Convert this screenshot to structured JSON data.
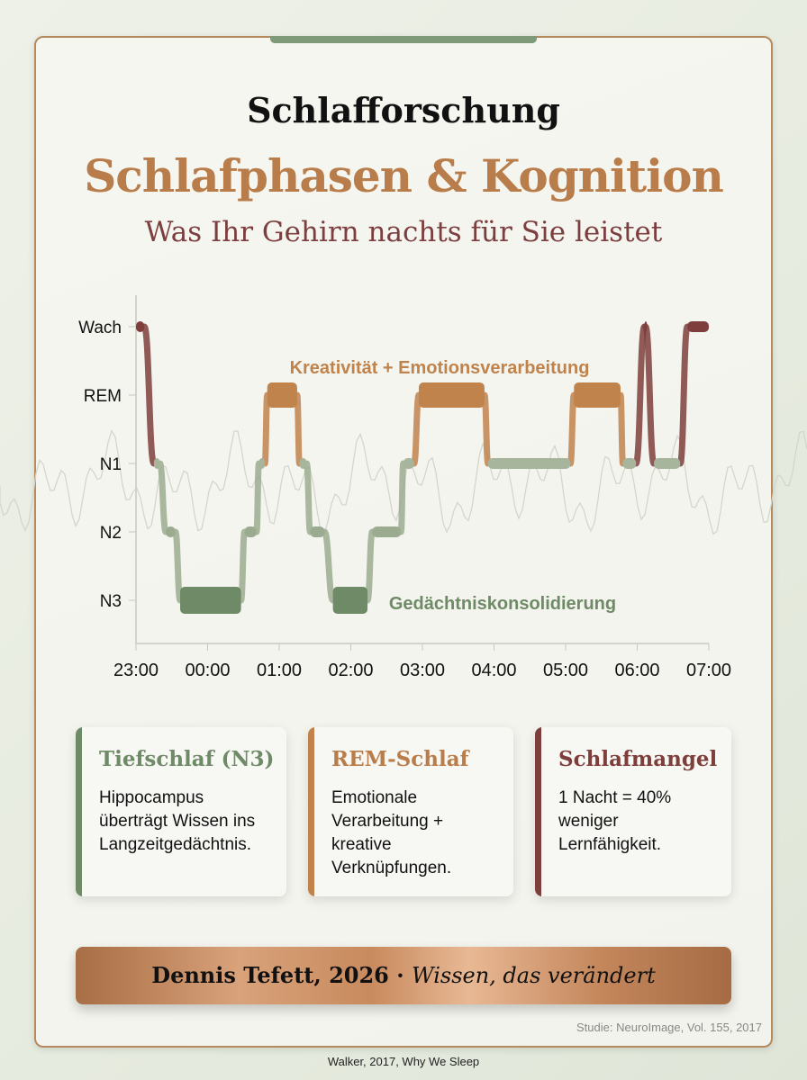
{
  "header": {
    "kicker": "Schlafforschung",
    "title": "Schlafphasen & Kognition",
    "subtitle": "Was Ihr Gehirn nachts für Sie leistet"
  },
  "colors": {
    "wach": "#7e3e3c",
    "rem": "#c0834c",
    "n1": "#a7b59c",
    "n2": "#9aab8f",
    "n3": "#6e8a66",
    "accent": "#b87d4b"
  },
  "chart_data": {
    "type": "line",
    "title": "",
    "xlabel": "",
    "ylabel": "",
    "y_categories": [
      "Wach",
      "REM",
      "N1",
      "N2",
      "N3"
    ],
    "x_ticks": [
      "23:00",
      "00:00",
      "01:00",
      "02:00",
      "03:00",
      "04:00",
      "05:00",
      "06:00",
      "07:00"
    ],
    "xlim": [
      "23:00",
      "07:00"
    ],
    "grid": false,
    "segments": [
      {
        "stage": "Wach",
        "start": "23:00",
        "end": "23:07"
      },
      {
        "stage": "N1",
        "start": "23:15",
        "end": "23:20"
      },
      {
        "stage": "N2",
        "start": "23:25",
        "end": "23:33"
      },
      {
        "stage": "N3",
        "start": "23:37",
        "end": "00:28"
      },
      {
        "stage": "N2",
        "start": "00:31",
        "end": "00:41"
      },
      {
        "stage": "N1",
        "start": "00:43",
        "end": "00:48"
      },
      {
        "stage": "REM",
        "start": "00:50",
        "end": "01:15"
      },
      {
        "stage": "N1",
        "start": "01:17",
        "end": "01:23"
      },
      {
        "stage": "N2",
        "start": "01:26",
        "end": "01:38"
      },
      {
        "stage": "N3",
        "start": "01:45",
        "end": "02:14"
      },
      {
        "stage": "N2",
        "start": "02:18",
        "end": "02:42"
      },
      {
        "stage": "N1",
        "start": "02:44",
        "end": "02:53"
      },
      {
        "stage": "REM",
        "start": "02:57",
        "end": "03:52"
      },
      {
        "stage": "N1",
        "start": "03:55",
        "end": "05:04"
      },
      {
        "stage": "REM",
        "start": "05:07",
        "end": "05:46"
      },
      {
        "stage": "N1",
        "start": "05:48",
        "end": "05:59"
      },
      {
        "stage": "Wach",
        "start": "06:06",
        "end": "06:07"
      },
      {
        "stage": "N1",
        "start": "06:14",
        "end": "06:36"
      },
      {
        "stage": "Wach",
        "start": "06:42",
        "end": "07:00"
      }
    ],
    "annotations": [
      {
        "text": "Kreativität + Emotionsverarbeitung",
        "stage": "REM"
      },
      {
        "text": "Gedächtniskonsolidierung",
        "stage": "N3"
      }
    ]
  },
  "cards": [
    {
      "title": "Tiefschlaf (N3)",
      "text": "Hippocampus überträgt Wissen ins Langzeitgedächtnis.",
      "color": "#6e8a66"
    },
    {
      "title": "REM-Schlaf",
      "text": "Emotionale Verarbeitung + kreative Verknüpfungen.",
      "color": "#c0834c"
    },
    {
      "title": "Schlafmangel",
      "text": "1 Nacht = 40% weniger Lernfähigkeit.",
      "color": "#7e3e3c"
    }
  ],
  "footer": {
    "author": "Dennis Tefett, 2026 · ",
    "tagline": "Wissen, das verändert"
  },
  "study": "Studie: NeuroImage, Vol. 155, 2017",
  "source": "Walker, 2017, Why We Sleep"
}
